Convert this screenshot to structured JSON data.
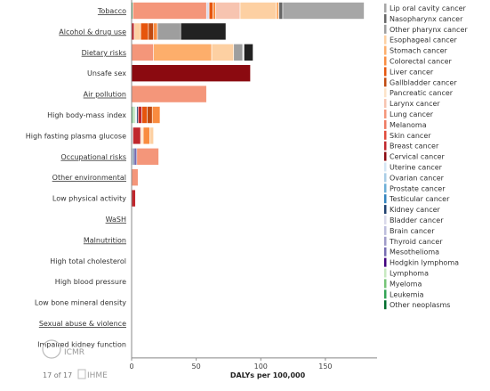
{
  "chart_data": {
    "type": "bar",
    "orientation": "horizontal",
    "stacked": true,
    "xlabel": "DALYs per 100,000",
    "xlim": [
      0,
      190
    ],
    "xticks": [
      0,
      50,
      100,
      150
    ],
    "categories": [
      {
        "label": "Tobacco",
        "link": true
      },
      {
        "label": "Alcohol & drug use",
        "link": true
      },
      {
        "label": "Dietary risks",
        "link": true
      },
      {
        "label": "Unsafe sex",
        "link": false
      },
      {
        "label": "Air pollution",
        "link": true
      },
      {
        "label": "High body-mass index",
        "link": false
      },
      {
        "label": "High fasting plasma glucose",
        "link": false
      },
      {
        "label": "Occupational risks",
        "link": true
      },
      {
        "label": "Other environmental",
        "link": true
      },
      {
        "label": "Low physical activity",
        "link": false
      },
      {
        "label": "WaSH",
        "link": true
      },
      {
        "label": "Malnutrition",
        "link": true
      },
      {
        "label": "High total cholesterol",
        "link": false
      },
      {
        "label": "High blood pressure",
        "link": false
      },
      {
        "label": "Low bone mineral density",
        "link": false
      },
      {
        "label": "Sexual abuse & violence",
        "link": true
      },
      {
        "label": "Impaired kidney function",
        "link": false
      }
    ],
    "series": [
      {
        "name": "Lip oral cavity cancer",
        "color": "#a6a6a6",
        "values": [
          63,
          0,
          0,
          0,
          0,
          0,
          0,
          0,
          0,
          0,
          0,
          0,
          0,
          0,
          0,
          0,
          0
        ]
      },
      {
        "name": "Nasopharynx cancer",
        "color": "#666666",
        "values": [
          3,
          0,
          0,
          0,
          0,
          0,
          0,
          0,
          0,
          0,
          0,
          0,
          0,
          0,
          0,
          0,
          0
        ]
      },
      {
        "name": "Other pharynx cancer",
        "color": "#9e9e9e",
        "values": [
          0,
          39,
          7,
          0,
          0,
          0,
          0,
          0,
          0,
          0,
          0,
          0,
          0,
          0,
          0,
          0,
          0
        ]
      },
      {
        "name": "Esophageal cancer",
        "color": "#fdd0a2",
        "values": [
          28,
          5,
          17,
          0,
          0,
          0,
          3,
          0,
          0,
          0,
          0,
          0,
          0,
          0,
          0,
          0,
          0
        ]
      },
      {
        "name": "Stomach cancer",
        "color": "#fdae6b",
        "values": [
          2,
          0,
          45,
          0,
          0,
          0,
          0,
          0,
          0,
          0,
          0,
          0,
          0,
          0,
          0,
          0,
          0
        ]
      },
      {
        "name": "Colorectal cancer",
        "color": "#f98c40",
        "values": [
          2,
          3,
          0,
          0,
          0,
          6,
          5,
          0,
          0,
          0,
          0,
          0,
          0,
          0,
          0,
          0,
          0
        ]
      },
      {
        "name": "Liver cancer",
        "color": "#e6550d",
        "values": [
          3,
          6,
          0,
          0,
          0,
          4,
          0,
          0,
          0,
          0,
          0,
          0,
          0,
          0,
          0,
          0,
          0
        ]
      },
      {
        "name": "Gallbladder cancer",
        "color": "#c04a10",
        "values": [
          0,
          4,
          0,
          0,
          0,
          4,
          0,
          0,
          0,
          0,
          0,
          0,
          0,
          0,
          0,
          0,
          0
        ]
      },
      {
        "name": "Pancreatic cancer",
        "color": "#fde3c8",
        "values": [
          0,
          0,
          0,
          0,
          0,
          0,
          2,
          0,
          0,
          0,
          0,
          0,
          0,
          0,
          0,
          0,
          0
        ]
      },
      {
        "name": "Larynx cancer",
        "color": "#f7c4b0",
        "values": [
          19,
          0,
          0,
          0,
          0,
          0,
          0,
          0,
          0,
          0,
          0,
          0,
          0,
          0,
          0,
          0,
          0
        ]
      },
      {
        "name": "Lung cancer",
        "color": "#f4967a",
        "values": [
          57,
          0,
          17,
          0,
          58,
          0,
          0,
          17,
          5,
          0,
          0,
          0,
          0,
          0,
          0,
          0,
          0
        ]
      },
      {
        "name": "Melanoma",
        "color": "#ee7a62",
        "values": [
          0,
          0,
          0,
          0,
          0,
          0,
          0,
          0,
          0,
          0,
          0,
          0,
          0,
          0,
          0,
          0,
          0
        ]
      },
      {
        "name": "Skin cancer",
        "color": "#e04a3a",
        "values": [
          0,
          0,
          0,
          0,
          0,
          0,
          0,
          0,
          0,
          0,
          0,
          0,
          0,
          0,
          0,
          0,
          0
        ]
      },
      {
        "name": "Breast cancer",
        "color": "#c0272d",
        "values": [
          0,
          2,
          0,
          0,
          0,
          3,
          6,
          0,
          0,
          3,
          0,
          0,
          0,
          0,
          0,
          0,
          0
        ]
      },
      {
        "name": "Cervical cancer",
        "color": "#8b0a10",
        "values": [
          0,
          0,
          0,
          92,
          0,
          0,
          0,
          0,
          0,
          0,
          0,
          0,
          0,
          0,
          0,
          0,
          0
        ]
      },
      {
        "name": "Uterine cancer",
        "color": "#d4e6f4",
        "values": [
          0,
          0,
          0,
          0,
          0,
          1,
          1,
          0,
          0,
          0,
          0,
          0,
          0,
          0,
          0,
          0,
          0
        ]
      },
      {
        "name": "Ovarian cancer",
        "color": "#a9cde6",
        "values": [
          0,
          0,
          0,
          0,
          0,
          0,
          0,
          1,
          0,
          0,
          0,
          0,
          0,
          0,
          0,
          0,
          0
        ]
      },
      {
        "name": "Prostate cancer",
        "color": "#6baed6",
        "values": [
          0,
          0,
          0,
          0,
          0,
          0,
          0,
          0,
          0,
          0,
          0,
          0,
          0,
          0,
          0,
          0,
          0
        ]
      },
      {
        "name": "Testicular cancer",
        "color": "#3182bd",
        "values": [
          0,
          0,
          0,
          0,
          0,
          0,
          0,
          0,
          0,
          0,
          0,
          0,
          0,
          0,
          0,
          0,
          0
        ]
      },
      {
        "name": "Kidney cancer",
        "color": "#1f3f6e",
        "values": [
          0,
          0,
          0,
          0,
          0,
          1,
          0,
          1,
          0,
          0,
          0,
          0,
          0,
          0,
          0,
          0,
          0
        ]
      },
      {
        "name": "Bladder cancer",
        "color": "#d9d9ea",
        "values": [
          2,
          0,
          0,
          0,
          0,
          0,
          0,
          0,
          0,
          0,
          0,
          0,
          0,
          0,
          0,
          0,
          0
        ]
      },
      {
        "name": "Brain cancer",
        "color": "#bcbddc",
        "values": [
          0,
          0,
          0,
          0,
          0,
          0,
          0,
          0,
          0,
          0,
          0,
          0,
          0,
          0,
          0,
          0,
          0
        ]
      },
      {
        "name": "Thyroid cancer",
        "color": "#9e9ac8",
        "values": [
          0,
          0,
          0,
          0,
          0,
          0,
          0,
          0,
          0,
          0,
          0,
          0,
          0,
          0,
          0,
          0,
          0
        ]
      },
      {
        "name": "Mesothelioma",
        "color": "#756bb1",
        "values": [
          0,
          0,
          0,
          0,
          0,
          0,
          0,
          2,
          0,
          0,
          0,
          0,
          0,
          0,
          0,
          0,
          0
        ]
      },
      {
        "name": "Hodgkin lymphoma",
        "color": "#3f007d",
        "values": [
          0,
          0,
          0,
          0,
          0,
          0,
          0,
          0,
          0,
          0,
          0,
          0,
          0,
          0,
          0,
          0,
          0
        ]
      },
      {
        "name": "Lymphoma",
        "color": "#c7e9c0",
        "values": [
          0,
          0,
          0,
          0,
          0,
          1,
          0,
          0,
          0,
          0,
          0,
          0,
          0,
          0,
          0,
          0,
          0
        ]
      },
      {
        "name": "Myeloma",
        "color": "#74c476",
        "values": [
          0,
          0,
          0,
          0,
          0,
          1,
          0,
          0,
          0,
          0,
          0,
          0,
          0,
          0,
          0,
          0,
          0
        ]
      },
      {
        "name": "Leukemia",
        "color": "#31a354",
        "values": [
          1,
          0,
          0,
          0,
          0,
          1,
          0,
          0,
          0,
          0,
          0,
          0,
          0,
          0,
          0,
          0,
          0
        ]
      },
      {
        "name": "Other neoplasms",
        "color": "#006d2c",
        "values": [
          0,
          0,
          0,
          0,
          0,
          0,
          0,
          0,
          0,
          0,
          0,
          0,
          0,
          0,
          0,
          0,
          0
        ]
      }
    ],
    "stack_order": [
      [
        "Leukemia",
        "Lung cancer",
        "Bladder cancer",
        "Liver cancer",
        "Colorectal cancer",
        "Larynx cancer",
        "Esophageal cancer",
        "Stomach cancer",
        "Nasopharynx cancer",
        "Lip oral cavity cancer"
      ],
      [
        "Breast cancer",
        "Esophageal cancer",
        "Liver cancer",
        "Gallbladder cancer",
        "Colorectal cancer",
        "Other pharynx cancer"
      ],
      [
        "Lung cancer",
        "Stomach cancer",
        "Esophageal cancer",
        "Other pharynx cancer"
      ],
      [
        "Cervical cancer"
      ],
      [
        "Lung cancer"
      ],
      [
        "Leukemia",
        "Myeloma",
        "Lymphoma",
        "Uterine cancer",
        "Kidney cancer",
        "Breast cancer",
        "Liver cancer",
        "Gallbladder cancer",
        "Colorectal cancer"
      ],
      [
        "Uterine cancer",
        "Breast cancer",
        "Pancreatic cancer",
        "Colorectal cancer",
        "Esophageal cancer"
      ],
      [
        "Ovarian cancer",
        "Kidney cancer",
        "Mesothelioma",
        "Lung cancer"
      ],
      [
        "Lung cancer"
      ],
      [
        "Breast cancer"
      ],
      [],
      [],
      [],
      [],
      [],
      [],
      []
    ],
    "overlays": [
      {
        "row": 1,
        "color": "#222222",
        "from": 38,
        "to": 73
      },
      {
        "row": 2,
        "color": "#222222",
        "from": 87,
        "to": 94
      }
    ],
    "legend_position": "right",
    "grid": false
  },
  "footer": {
    "page_indicator": "17 of 17",
    "logo_left": "ICMR",
    "logo_right": "IHME"
  }
}
